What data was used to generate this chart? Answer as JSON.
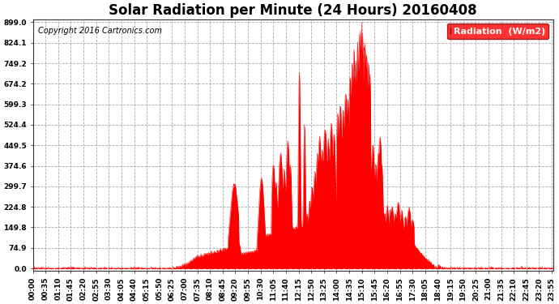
{
  "title": "Solar Radiation per Minute (24 Hours) 20160408",
  "copyright": "Copyright 2016 Cartronics.com",
  "legend_label": "Radiation  (W/m2)",
  "y_ticks": [
    0.0,
    74.9,
    149.8,
    224.8,
    299.7,
    374.6,
    449.5,
    524.4,
    599.3,
    674.2,
    749.2,
    824.1,
    899.0
  ],
  "ylim_min": -10,
  "ylim_max": 910,
  "bg_color": "#ffffff",
  "plot_bg_color": "#ffffff",
  "grid_color": "#aaaaaa",
  "fill_color": "#ff0000",
  "title_fontsize": 12,
  "copyright_fontsize": 7,
  "tick_fontsize": 6.5,
  "legend_fontsize": 8,
  "x_tick_step": 35
}
